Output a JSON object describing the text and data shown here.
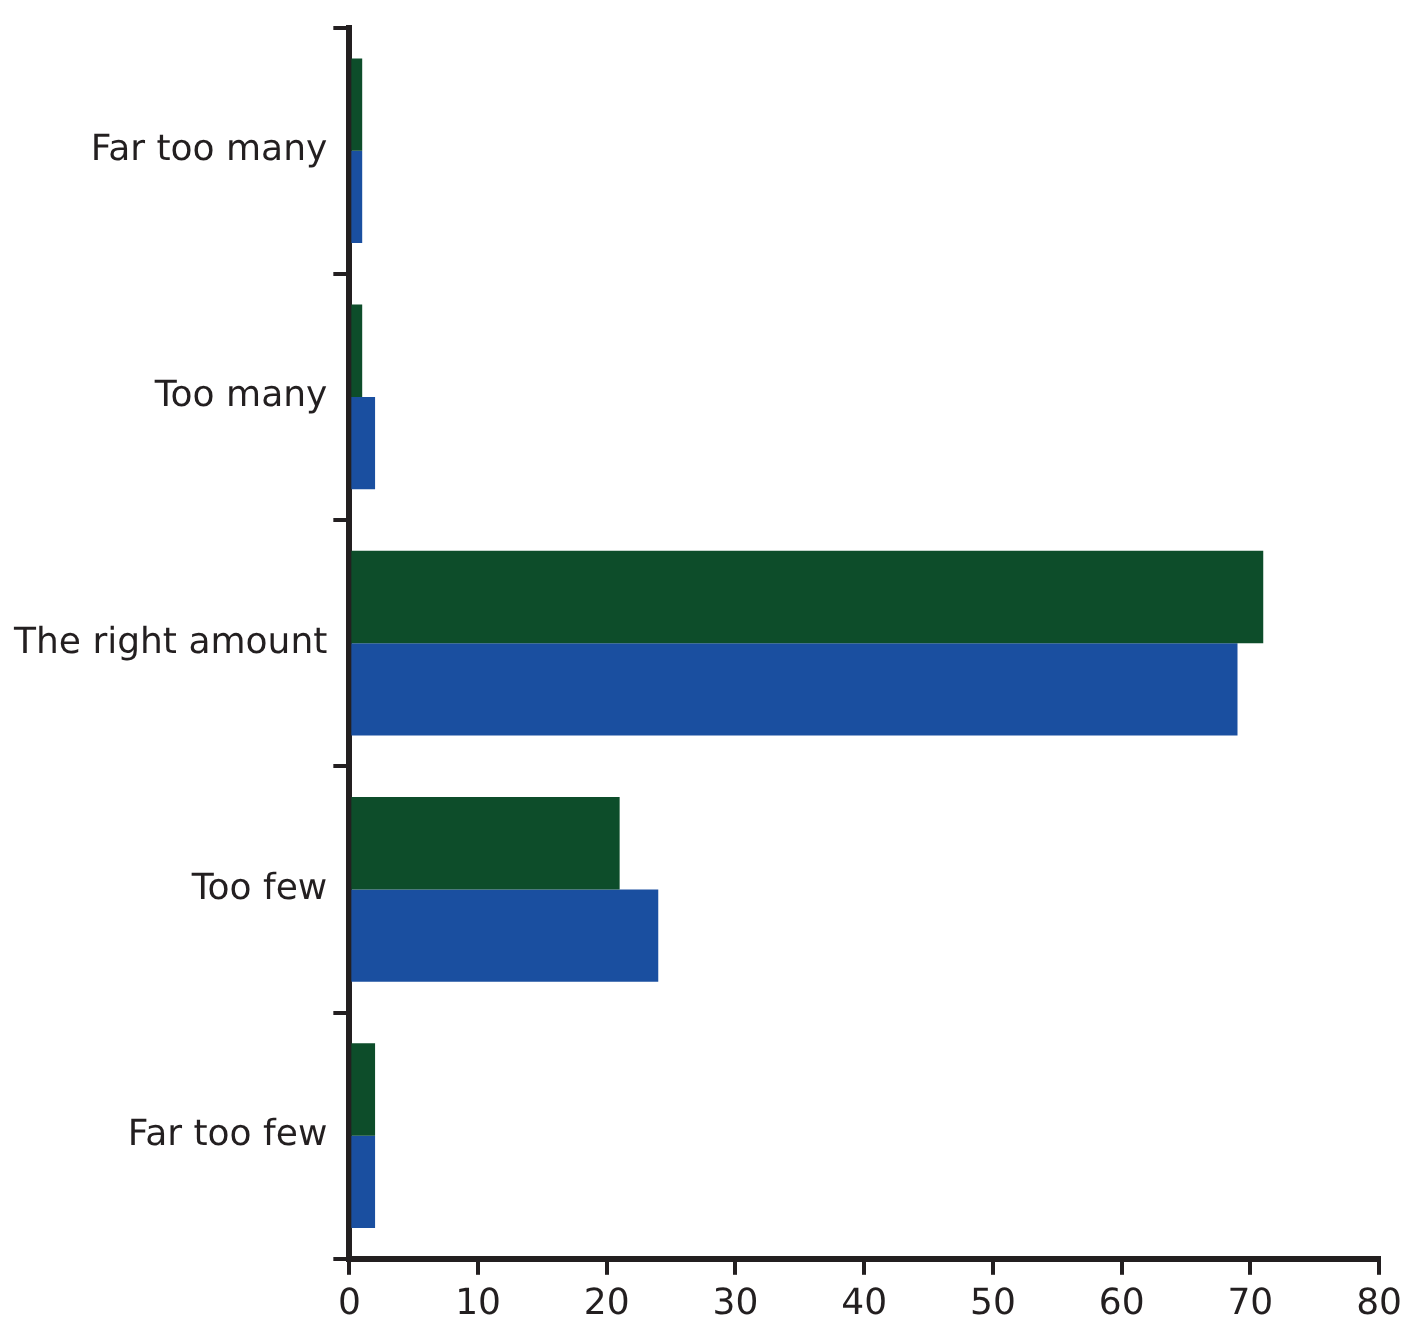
{
  "chart_data": {
    "type": "bar",
    "orientation": "horizontal",
    "categories": [
      "Far too many",
      "Too many",
      "The right amount",
      "Too few",
      "Far too few"
    ],
    "series": [
      {
        "color": "#0d4d2a",
        "values": [
          1,
          1,
          71,
          21,
          2
        ]
      },
      {
        "color": "#1a4fa0",
        "values": [
          1,
          2,
          69,
          24,
          2
        ]
      }
    ],
    "xlim": [
      0,
      80
    ],
    "xticks": [
      0,
      10,
      20,
      30,
      40,
      50,
      60,
      70,
      80
    ],
    "grid": false,
    "legend": false
  }
}
